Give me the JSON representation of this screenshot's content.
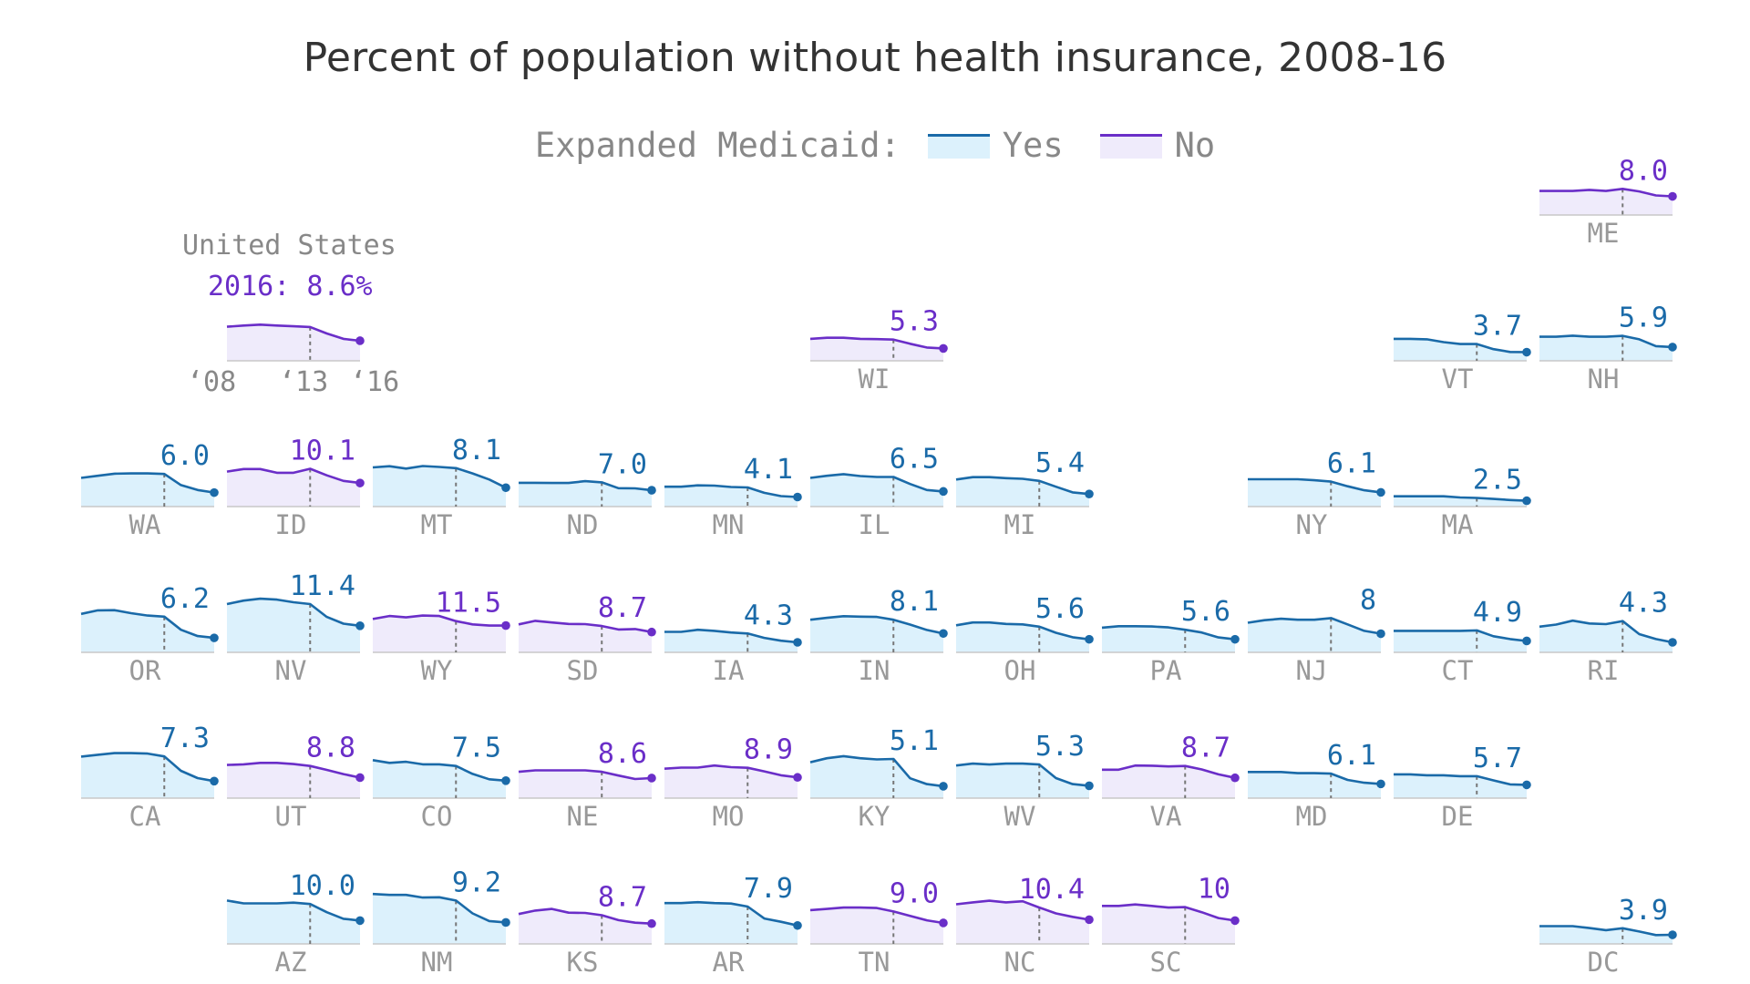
{
  "title": "Percent of population without health insurance, 2008-16",
  "legend": {
    "label": "Expanded Medicaid:",
    "yes": "Yes",
    "no": "No"
  },
  "colors": {
    "yes_line": "#1a6aa8",
    "yes_fill": "#dcf1fc",
    "no_line": "#6a2ec8",
    "no_fill": "#efebfb",
    "state_label": "#999999",
    "baseline": "#c8c8c8",
    "marker": "#777777"
  },
  "us": {
    "label": "United States",
    "value_text": "2016: 8.6%",
    "years": [
      "‘08",
      "‘13",
      "‘16"
    ]
  },
  "chart_data": {
    "type": "line",
    "x": [
      2008,
      2009,
      2010,
      2011,
      2012,
      2013,
      2014,
      2015,
      2016
    ],
    "marker_year": 2013,
    "ylim": [
      0,
      25
    ],
    "series": [
      {
        "name": "United States",
        "expanded": "no",
        "label": "2016: 8.6%",
        "values": [
          14.6,
          15.1,
          15.5,
          15.1,
          14.8,
          14.5,
          11.7,
          9.4,
          8.6
        ]
      },
      {
        "name": "ME",
        "expanded": "no",
        "label": "8.0",
        "values": [
          10.3,
          10.3,
          10.3,
          10.8,
          10.3,
          11.2,
          10.1,
          8.4,
          8.0
        ]
      },
      {
        "name": "WI",
        "expanded": "no",
        "label": "5.3",
        "values": [
          9.4,
          9.9,
          9.9,
          9.4,
          9.3,
          9.1,
          7.3,
          5.7,
          5.3
        ]
      },
      {
        "name": "VT",
        "expanded": "yes",
        "label": "3.7",
        "values": [
          9.4,
          9.4,
          9.2,
          8.0,
          7.2,
          7.2,
          5.0,
          3.8,
          3.7
        ]
      },
      {
        "name": "NH",
        "expanded": "yes",
        "label": "5.9",
        "values": [
          10.3,
          10.3,
          10.8,
          10.3,
          10.3,
          10.7,
          9.2,
          6.3,
          5.9
        ]
      },
      {
        "name": "WA",
        "expanded": "yes",
        "label": "6.0",
        "values": [
          12.3,
          13.2,
          14.1,
          14.2,
          14.2,
          14.0,
          9.2,
          7.1,
          6.0
        ]
      },
      {
        "name": "ID",
        "expanded": "no",
        "label": "10.1",
        "values": [
          15.0,
          16.1,
          16.1,
          14.5,
          14.5,
          16.2,
          13.4,
          11.0,
          10.1
        ]
      },
      {
        "name": "MT",
        "expanded": "yes",
        "label": "8.1",
        "values": [
          16.8,
          17.3,
          16.3,
          17.4,
          17.0,
          16.5,
          14.2,
          11.6,
          8.1
        ]
      },
      {
        "name": "ND",
        "expanded": "yes",
        "label": "7.0",
        "values": [
          10.2,
          10.2,
          10.1,
          10.1,
          10.9,
          10.4,
          7.9,
          7.8,
          7.0
        ]
      },
      {
        "name": "MN",
        "expanded": "yes",
        "label": "4.1",
        "values": [
          8.5,
          8.5,
          9.1,
          9.0,
          8.4,
          8.2,
          5.9,
          4.5,
          4.1
        ]
      },
      {
        "name": "IL",
        "expanded": "yes",
        "label": "6.5",
        "values": [
          12.3,
          13.2,
          13.9,
          13.1,
          12.7,
          12.7,
          9.7,
          7.1,
          6.5
        ]
      },
      {
        "name": "MI",
        "expanded": "yes",
        "label": "5.4",
        "values": [
          11.6,
          12.6,
          12.6,
          12.2,
          11.9,
          11.0,
          8.5,
          6.1,
          5.4
        ]
      },
      {
        "name": "NY",
        "expanded": "yes",
        "label": "6.1",
        "values": [
          11.7,
          11.7,
          11.7,
          11.7,
          11.3,
          10.7,
          8.7,
          7.0,
          6.1
        ]
      },
      {
        "name": "MA",
        "expanded": "yes",
        "label": "2.5",
        "values": [
          4.4,
          4.4,
          4.4,
          4.4,
          3.9,
          3.7,
          3.3,
          2.8,
          2.5
        ]
      },
      {
        "name": "OR",
        "expanded": "yes",
        "label": "6.2",
        "values": [
          16.5,
          18.0,
          18.1,
          16.8,
          15.8,
          15.3,
          9.7,
          7.0,
          6.2
        ]
      },
      {
        "name": "NV",
        "expanded": "yes",
        "label": "11.4",
        "values": [
          20.7,
          22.2,
          23.0,
          22.6,
          21.5,
          20.7,
          15.2,
          12.3,
          11.4
        ]
      },
      {
        "name": "WY",
        "expanded": "no",
        "label": "11.5",
        "values": [
          14.3,
          15.6,
          15.0,
          15.8,
          15.6,
          13.4,
          12.0,
          11.5,
          11.5
        ]
      },
      {
        "name": "SD",
        "expanded": "no",
        "label": "8.7",
        "values": [
          12.0,
          13.5,
          12.8,
          12.2,
          12.1,
          11.3,
          9.8,
          10.0,
          8.7
        ]
      },
      {
        "name": "IA",
        "expanded": "yes",
        "label": "4.3",
        "values": [
          8.8,
          8.8,
          9.7,
          9.2,
          8.5,
          8.1,
          6.2,
          5.0,
          4.3
        ]
      },
      {
        "name": "IN",
        "expanded": "yes",
        "label": "8.1",
        "values": [
          14.0,
          14.8,
          15.5,
          15.3,
          15.2,
          14.0,
          11.9,
          9.6,
          8.1
        ]
      },
      {
        "name": "OH",
        "expanded": "yes",
        "label": "5.6",
        "values": [
          11.6,
          12.8,
          12.8,
          12.2,
          12.0,
          11.0,
          8.4,
          6.5,
          5.6
        ]
      },
      {
        "name": "PA",
        "expanded": "yes",
        "label": "5.6",
        "values": [
          10.6,
          11.2,
          11.2,
          11.1,
          10.7,
          9.7,
          8.5,
          6.4,
          5.6
        ]
      },
      {
        "name": "NJ",
        "expanded": "yes",
        "label": "8",
        "values": [
          12.7,
          13.8,
          14.4,
          14.0,
          14.0,
          14.7,
          12.0,
          9.2,
          8.0
        ]
      },
      {
        "name": "CT",
        "expanded": "yes",
        "label": "4.9",
        "values": [
          9.2,
          9.2,
          9.2,
          9.2,
          9.2,
          9.4,
          6.9,
          5.7,
          4.9
        ]
      },
      {
        "name": "RI",
        "expanded": "yes",
        "label": "4.3",
        "values": [
          11.0,
          11.9,
          13.6,
          12.4,
          12.1,
          13.4,
          7.8,
          5.7,
          4.3
        ]
      },
      {
        "name": "CA",
        "expanded": "yes",
        "label": "7.3",
        "values": [
          17.8,
          18.6,
          19.3,
          19.3,
          19.1,
          17.9,
          11.7,
          8.6,
          7.3
        ]
      },
      {
        "name": "UT",
        "expanded": "no",
        "label": "8.8",
        "values": [
          14.2,
          14.5,
          15.1,
          15.1,
          14.6,
          13.8,
          12.1,
          10.3,
          8.8
        ]
      },
      {
        "name": "CO",
        "expanded": "yes",
        "label": "7.5",
        "values": [
          16.3,
          15.1,
          15.6,
          14.5,
          14.5,
          13.8,
          10.4,
          8.1,
          7.5
        ]
      },
      {
        "name": "NE",
        "expanded": "no",
        "label": "8.6",
        "values": [
          11.3,
          11.9,
          11.9,
          11.9,
          11.9,
          11.3,
          9.7,
          8.2,
          8.6
        ]
      },
      {
        "name": "MO",
        "expanded": "no",
        "label": "8.9",
        "values": [
          12.6,
          13.1,
          13.1,
          14.0,
          13.3,
          13.0,
          11.5,
          9.8,
          8.9
        ]
      },
      {
        "name": "KY",
        "expanded": "yes",
        "label": "5.1",
        "values": [
          15.4,
          17.1,
          18.0,
          17.1,
          16.6,
          16.8,
          8.5,
          6.0,
          5.1
        ]
      },
      {
        "name": "WV",
        "expanded": "yes",
        "label": "5.3",
        "values": [
          14.0,
          14.8,
          14.4,
          14.8,
          14.8,
          14.4,
          8.6,
          6.0,
          5.3
        ]
      },
      {
        "name": "VA",
        "expanded": "no",
        "label": "8.7",
        "values": [
          12.2,
          12.2,
          14.0,
          13.9,
          13.6,
          13.8,
          12.3,
          10.2,
          8.7
        ]
      },
      {
        "name": "MD",
        "expanded": "yes",
        "label": "6.1",
        "values": [
          11.2,
          11.2,
          11.2,
          10.7,
          10.7,
          10.5,
          7.8,
          6.6,
          6.1
        ]
      },
      {
        "name": "DE",
        "expanded": "yes",
        "label": "5.7",
        "values": [
          10.2,
          10.2,
          9.8,
          9.8,
          9.4,
          9.4,
          7.6,
          5.9,
          5.7
        ]
      },
      {
        "name": "AZ",
        "expanded": "yes",
        "label": "10.0",
        "values": [
          18.6,
          17.4,
          17.4,
          17.4,
          17.7,
          17.1,
          13.6,
          10.8,
          10.0
        ]
      },
      {
        "name": "NM",
        "expanded": "yes",
        "label": "9.2",
        "values": [
          21.4,
          21.0,
          21.0,
          19.9,
          20.0,
          18.6,
          13.1,
          9.8,
          9.2
        ]
      },
      {
        "name": "KS",
        "expanded": "no",
        "label": "8.7",
        "values": [
          12.8,
          14.3,
          15.0,
          13.4,
          13.3,
          12.3,
          10.2,
          9.1,
          8.7
        ]
      },
      {
        "name": "AR",
        "expanded": "yes",
        "label": "7.9",
        "values": [
          17.5,
          17.5,
          17.9,
          17.5,
          17.3,
          16.0,
          10.9,
          9.5,
          7.9
        ]
      },
      {
        "name": "TN",
        "expanded": "no",
        "label": "9.0",
        "values": [
          14.5,
          15.0,
          15.6,
          15.6,
          15.4,
          13.9,
          12.0,
          10.1,
          9.0
        ]
      },
      {
        "name": "NC",
        "expanded": "no",
        "label": "10.4",
        "values": [
          17.0,
          17.8,
          18.5,
          17.8,
          18.3,
          15.6,
          13.1,
          11.6,
          10.4
        ]
      },
      {
        "name": "SC",
        "expanded": "no",
        "label": "10",
        "values": [
          16.3,
          16.3,
          16.9,
          16.3,
          15.6,
          15.8,
          13.6,
          11.1,
          10.0
        ]
      },
      {
        "name": "DC",
        "expanded": "yes",
        "label": "3.9",
        "values": [
          7.6,
          7.6,
          7.6,
          6.8,
          5.9,
          6.7,
          5.3,
          3.8,
          3.9
        ]
      }
    ]
  }
}
